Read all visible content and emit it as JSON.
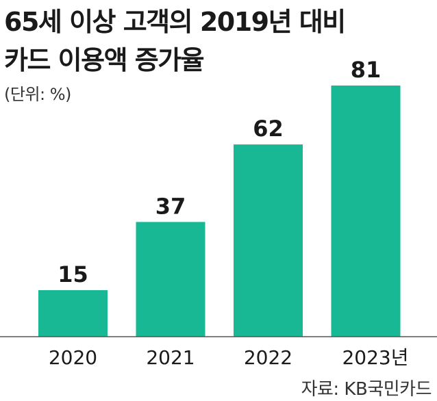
{
  "chart_data": {
    "type": "bar",
    "title_lines": [
      "65세 이상 고객의 2019년 대비",
      "카드 이용액 증가율"
    ],
    "unit": "(단위: %)",
    "categories": [
      "2020",
      "2021",
      "2022",
      "2023년"
    ],
    "values": [
      15,
      37,
      62,
      81
    ],
    "data_labels": [
      "15",
      "37",
      "62",
      "81"
    ],
    "ylim": [
      0,
      81
    ],
    "grid": false,
    "bar_color": "#18b894",
    "source": "자료: KB국민카드"
  }
}
